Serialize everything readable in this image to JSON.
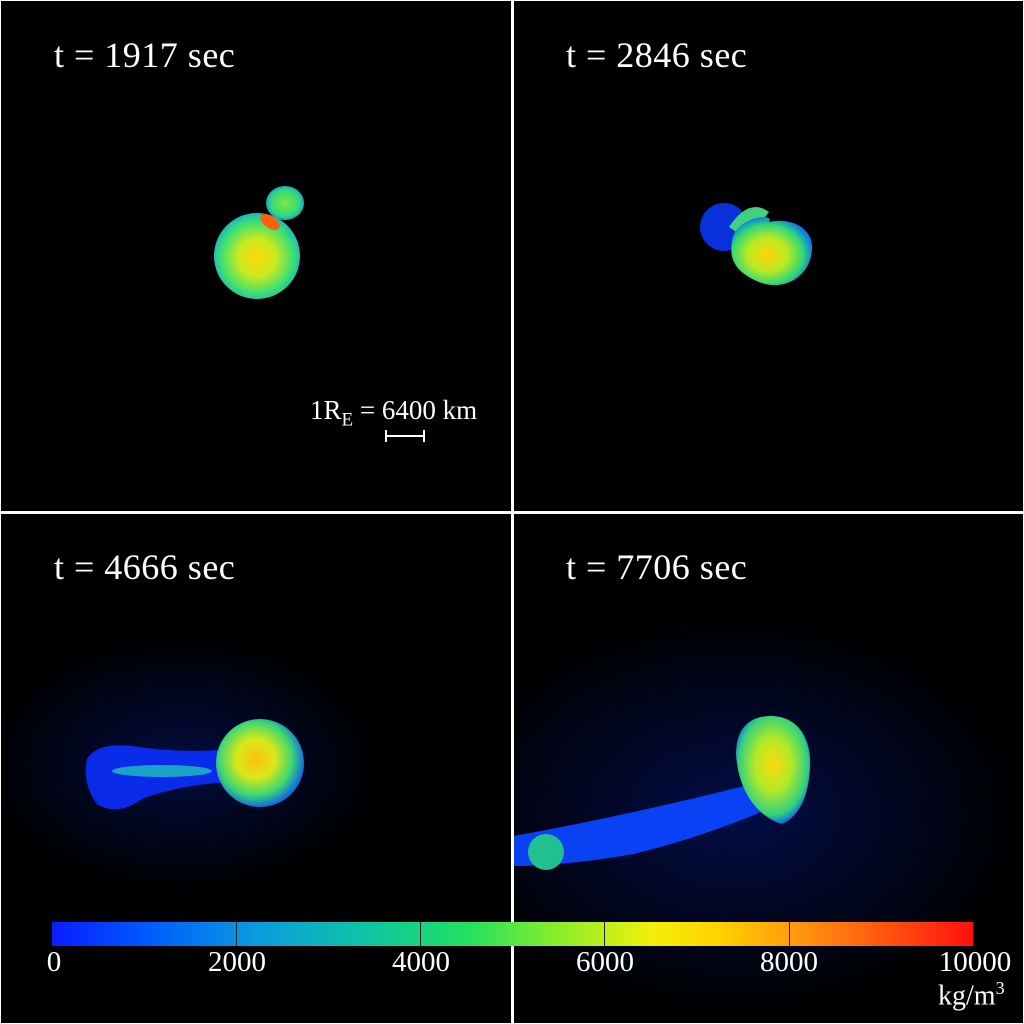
{
  "panels": [
    {
      "time_label": "t = 1917 sec"
    },
    {
      "time_label": "t = 2846 sec"
    },
    {
      "time_label": "t = 4666 sec"
    },
    {
      "time_label": "t = 7706 sec"
    }
  ],
  "scale_bar": {
    "prefix": "1R",
    "subscript": "E",
    "suffix": " = 6400 km"
  },
  "colorbar": {
    "ticks": [
      "0",
      "2000",
      "4000",
      "6000",
      "8000",
      "10000"
    ],
    "unit_base": "kg/m",
    "unit_exp": "3",
    "colors": {
      "low": "#0a1dff",
      "mid": "#22e060",
      "high": "#ff1010"
    }
  }
}
